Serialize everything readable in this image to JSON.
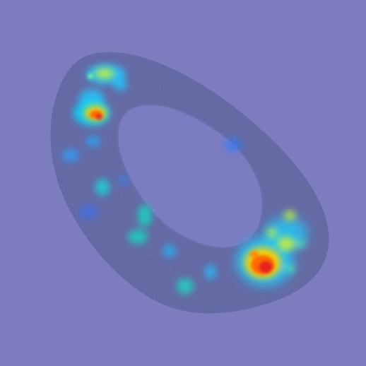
{
  "image": {
    "background_color": "#7c7cbf",
    "ring_color": "#555a97",
    "hole_color": "#7b7cc1",
    "heatmap_palette": [
      "#2e6cff",
      "#00c8ff",
      "#19e6b4",
      "#c8f03c",
      "#ffd200",
      "#ff7a00",
      "#e8201c"
    ]
  }
}
